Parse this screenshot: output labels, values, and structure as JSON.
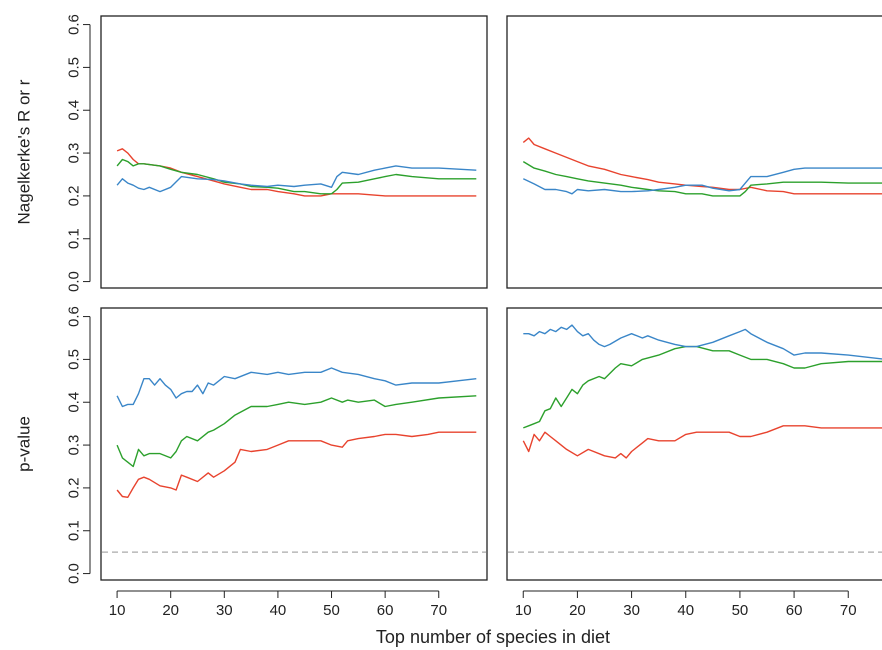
{
  "xlabel": "Top number of species in diet",
  "reference_line": {
    "y": 0.05,
    "color": "#aaaaaa",
    "style": "dashed"
  },
  "colors": {
    "red": "#e8432e",
    "green": "#2ca02c",
    "blue": "#3a86c8",
    "frame": "#222222"
  },
  "chart_data": [
    {
      "type": "line",
      "ylabel": "Nagelkerke's R or r",
      "xlim": [
        7,
        79
      ],
      "ylim": [
        -0.015,
        0.62
      ],
      "xticks": [
        10,
        20,
        30,
        40,
        50,
        60,
        70
      ],
      "yticks": [
        "0.0",
        "0.1",
        "0.2",
        "0.3",
        "0.4",
        "0.5",
        "0.6"
      ],
      "x_tick_labels_shown": false,
      "y_tick_labels_shown": true,
      "series": [
        {
          "color": "red",
          "x": [
            10,
            11,
            12,
            13,
            14,
            15,
            18,
            20,
            22,
            25,
            28,
            30,
            33,
            35,
            38,
            40,
            43,
            45,
            48,
            50,
            52,
            55,
            60,
            65,
            70,
            77
          ],
          "y": [
            0.305,
            0.31,
            0.3,
            0.285,
            0.275,
            0.275,
            0.27,
            0.265,
            0.255,
            0.245,
            0.235,
            0.228,
            0.22,
            0.215,
            0.215,
            0.21,
            0.205,
            0.2,
            0.2,
            0.205,
            0.205,
            0.205,
            0.2,
            0.2,
            0.2,
            0.2
          ]
        },
        {
          "color": "green",
          "x": [
            10,
            11,
            12,
            13,
            14,
            15,
            18,
            20,
            22,
            25,
            28,
            30,
            33,
            35,
            38,
            40,
            43,
            45,
            48,
            50,
            51,
            52,
            55,
            58,
            60,
            62,
            65,
            70,
            77
          ],
          "y": [
            0.27,
            0.285,
            0.28,
            0.27,
            0.275,
            0.275,
            0.27,
            0.262,
            0.255,
            0.25,
            0.24,
            0.232,
            0.228,
            0.222,
            0.22,
            0.218,
            0.21,
            0.21,
            0.205,
            0.205,
            0.215,
            0.23,
            0.232,
            0.24,
            0.245,
            0.25,
            0.245,
            0.24,
            0.24
          ]
        },
        {
          "color": "blue",
          "x": [
            10,
            11,
            12,
            13,
            14,
            15,
            16,
            18,
            20,
            22,
            25,
            28,
            30,
            33,
            35,
            38,
            40,
            43,
            45,
            48,
            50,
            51,
            52,
            55,
            58,
            60,
            62,
            65,
            70,
            77
          ],
          "y": [
            0.225,
            0.24,
            0.23,
            0.225,
            0.218,
            0.215,
            0.22,
            0.21,
            0.22,
            0.245,
            0.24,
            0.238,
            0.235,
            0.228,
            0.225,
            0.222,
            0.225,
            0.222,
            0.225,
            0.228,
            0.22,
            0.245,
            0.255,
            0.25,
            0.26,
            0.265,
            0.27,
            0.265,
            0.265,
            0.26
          ]
        }
      ]
    },
    {
      "type": "line",
      "ylabel": "",
      "xlim": [
        7,
        79
      ],
      "ylim": [
        -0.015,
        0.62
      ],
      "xticks": [
        10,
        20,
        30,
        40,
        50,
        60,
        70
      ],
      "yticks": [
        "0.0",
        "0.1",
        "0.2",
        "0.3",
        "0.4",
        "0.5",
        "0.6"
      ],
      "x_tick_labels_shown": false,
      "y_tick_labels_shown": false,
      "series": [
        {
          "color": "red",
          "x": [
            10,
            11,
            12,
            14,
            16,
            18,
            20,
            22,
            25,
            28,
            30,
            33,
            35,
            38,
            40,
            43,
            45,
            48,
            50,
            52,
            55,
            58,
            60,
            65,
            70,
            77
          ],
          "y": [
            0.325,
            0.335,
            0.32,
            0.31,
            0.3,
            0.29,
            0.28,
            0.27,
            0.262,
            0.25,
            0.245,
            0.238,
            0.232,
            0.228,
            0.225,
            0.222,
            0.22,
            0.215,
            0.215,
            0.22,
            0.212,
            0.21,
            0.205,
            0.205,
            0.205,
            0.205
          ]
        },
        {
          "color": "green",
          "x": [
            10,
            12,
            14,
            16,
            18,
            20,
            22,
            25,
            28,
            30,
            33,
            35,
            38,
            40,
            43,
            45,
            48,
            50,
            51,
            52,
            55,
            58,
            60,
            65,
            70,
            77
          ],
          "y": [
            0.28,
            0.265,
            0.258,
            0.25,
            0.245,
            0.24,
            0.235,
            0.23,
            0.225,
            0.22,
            0.215,
            0.212,
            0.21,
            0.205,
            0.205,
            0.2,
            0.2,
            0.2,
            0.21,
            0.225,
            0.228,
            0.232,
            0.232,
            0.232,
            0.23,
            0.23
          ]
        },
        {
          "color": "blue",
          "x": [
            10,
            12,
            14,
            16,
            18,
            19,
            20,
            22,
            25,
            28,
            30,
            33,
            35,
            38,
            40,
            43,
            45,
            48,
            50,
            51,
            52,
            55,
            58,
            60,
            62,
            65,
            70,
            77
          ],
          "y": [
            0.24,
            0.228,
            0.215,
            0.215,
            0.21,
            0.205,
            0.215,
            0.212,
            0.215,
            0.21,
            0.21,
            0.212,
            0.215,
            0.22,
            0.225,
            0.225,
            0.218,
            0.212,
            0.215,
            0.23,
            0.245,
            0.245,
            0.255,
            0.262,
            0.265,
            0.265,
            0.265,
            0.265
          ]
        }
      ]
    },
    {
      "type": "line",
      "ylabel": "p-value",
      "xlim": [
        7,
        79
      ],
      "ylim": [
        -0.015,
        0.62
      ],
      "xticks": [
        10,
        20,
        30,
        40,
        50,
        60,
        70
      ],
      "xtick_labels": [
        "10",
        "20",
        "30",
        "40",
        "50",
        "60",
        "70"
      ],
      "yticks": [
        "0.0",
        "0.1",
        "0.2",
        "0.3",
        "0.4",
        "0.5",
        "0.6"
      ],
      "x_tick_labels_shown": true,
      "y_tick_labels_shown": true,
      "series": [
        {
          "color": "red",
          "x": [
            10,
            11,
            12,
            13,
            14,
            15,
            16,
            18,
            20,
            21,
            22,
            23,
            25,
            27,
            28,
            30,
            32,
            33,
            35,
            38,
            40,
            42,
            45,
            48,
            50,
            52,
            53,
            55,
            58,
            60,
            62,
            65,
            68,
            70,
            77
          ],
          "y": [
            0.195,
            0.18,
            0.178,
            0.2,
            0.22,
            0.225,
            0.22,
            0.205,
            0.2,
            0.195,
            0.23,
            0.225,
            0.215,
            0.235,
            0.225,
            0.24,
            0.26,
            0.29,
            0.285,
            0.29,
            0.3,
            0.31,
            0.31,
            0.31,
            0.3,
            0.295,
            0.31,
            0.315,
            0.32,
            0.325,
            0.325,
            0.32,
            0.325,
            0.33,
            0.33
          ]
        },
        {
          "color": "green",
          "x": [
            10,
            11,
            12,
            13,
            14,
            15,
            16,
            18,
            20,
            21,
            22,
            23,
            25,
            27,
            28,
            30,
            32,
            35,
            38,
            40,
            42,
            45,
            48,
            50,
            52,
            53,
            55,
            58,
            60,
            62,
            65,
            70,
            77
          ],
          "y": [
            0.3,
            0.27,
            0.26,
            0.25,
            0.29,
            0.275,
            0.28,
            0.28,
            0.27,
            0.285,
            0.31,
            0.32,
            0.31,
            0.33,
            0.335,
            0.35,
            0.37,
            0.39,
            0.39,
            0.395,
            0.4,
            0.395,
            0.4,
            0.41,
            0.4,
            0.405,
            0.4,
            0.405,
            0.39,
            0.395,
            0.4,
            0.41,
            0.415
          ]
        },
        {
          "color": "blue",
          "x": [
            10,
            11,
            12,
            13,
            14,
            15,
            16,
            17,
            18,
            19,
            20,
            21,
            22,
            23,
            24,
            25,
            26,
            27,
            28,
            30,
            32,
            35,
            38,
            40,
            42,
            45,
            48,
            50,
            52,
            55,
            58,
            60,
            62,
            65,
            68,
            70,
            77
          ],
          "y": [
            0.415,
            0.39,
            0.395,
            0.395,
            0.42,
            0.455,
            0.455,
            0.44,
            0.455,
            0.44,
            0.43,
            0.41,
            0.42,
            0.425,
            0.425,
            0.44,
            0.42,
            0.445,
            0.44,
            0.46,
            0.455,
            0.47,
            0.465,
            0.47,
            0.465,
            0.47,
            0.47,
            0.48,
            0.47,
            0.465,
            0.455,
            0.45,
            0.44,
            0.445,
            0.445,
            0.445,
            0.455
          ]
        }
      ]
    },
    {
      "type": "line",
      "ylabel": "",
      "xlim": [
        7,
        79
      ],
      "ylim": [
        -0.015,
        0.62
      ],
      "xticks": [
        10,
        20,
        30,
        40,
        50,
        60,
        70
      ],
      "xtick_labels": [
        "10",
        "20",
        "30",
        "40",
        "50",
        "60",
        "70"
      ],
      "yticks": [
        "0.0",
        "0.1",
        "0.2",
        "0.3",
        "0.4",
        "0.5",
        "0.6"
      ],
      "x_tick_labels_shown": true,
      "y_tick_labels_shown": false,
      "series": [
        {
          "color": "red",
          "x": [
            10,
            11,
            12,
            13,
            14,
            15,
            16,
            18,
            20,
            22,
            25,
            27,
            28,
            29,
            30,
            32,
            33,
            35,
            38,
            40,
            42,
            45,
            48,
            50,
            52,
            55,
            58,
            60,
            62,
            65,
            70,
            77
          ],
          "y": [
            0.31,
            0.285,
            0.325,
            0.31,
            0.33,
            0.32,
            0.31,
            0.29,
            0.275,
            0.29,
            0.275,
            0.27,
            0.28,
            0.27,
            0.285,
            0.305,
            0.315,
            0.31,
            0.31,
            0.325,
            0.33,
            0.33,
            0.33,
            0.32,
            0.32,
            0.33,
            0.345,
            0.345,
            0.345,
            0.34,
            0.34,
            0.34
          ]
        },
        {
          "color": "green",
          "x": [
            10,
            11,
            12,
            13,
            14,
            15,
            16,
            17,
            18,
            19,
            20,
            21,
            22,
            24,
            25,
            27,
            28,
            30,
            32,
            35,
            38,
            40,
            42,
            45,
            48,
            50,
            52,
            55,
            58,
            60,
            62,
            65,
            70,
            77
          ],
          "y": [
            0.34,
            0.345,
            0.35,
            0.355,
            0.38,
            0.385,
            0.41,
            0.39,
            0.41,
            0.43,
            0.42,
            0.44,
            0.45,
            0.46,
            0.455,
            0.48,
            0.49,
            0.485,
            0.5,
            0.51,
            0.525,
            0.53,
            0.53,
            0.52,
            0.52,
            0.51,
            0.5,
            0.5,
            0.49,
            0.48,
            0.48,
            0.49,
            0.495,
            0.495
          ]
        },
        {
          "color": "blue",
          "x": [
            10,
            11,
            12,
            13,
            14,
            15,
            16,
            17,
            18,
            19,
            20,
            21,
            22,
            23,
            24,
            25,
            26,
            28,
            30,
            32,
            33,
            35,
            38,
            40,
            42,
            45,
            48,
            50,
            51,
            52,
            55,
            58,
            60,
            62,
            65,
            70,
            77
          ],
          "y": [
            0.56,
            0.56,
            0.555,
            0.565,
            0.56,
            0.57,
            0.565,
            0.575,
            0.57,
            0.58,
            0.565,
            0.555,
            0.56,
            0.545,
            0.535,
            0.53,
            0.535,
            0.55,
            0.56,
            0.55,
            0.555,
            0.545,
            0.535,
            0.53,
            0.53,
            0.54,
            0.555,
            0.565,
            0.57,
            0.56,
            0.54,
            0.525,
            0.51,
            0.515,
            0.515,
            0.51,
            0.5
          ]
        }
      ]
    }
  ]
}
